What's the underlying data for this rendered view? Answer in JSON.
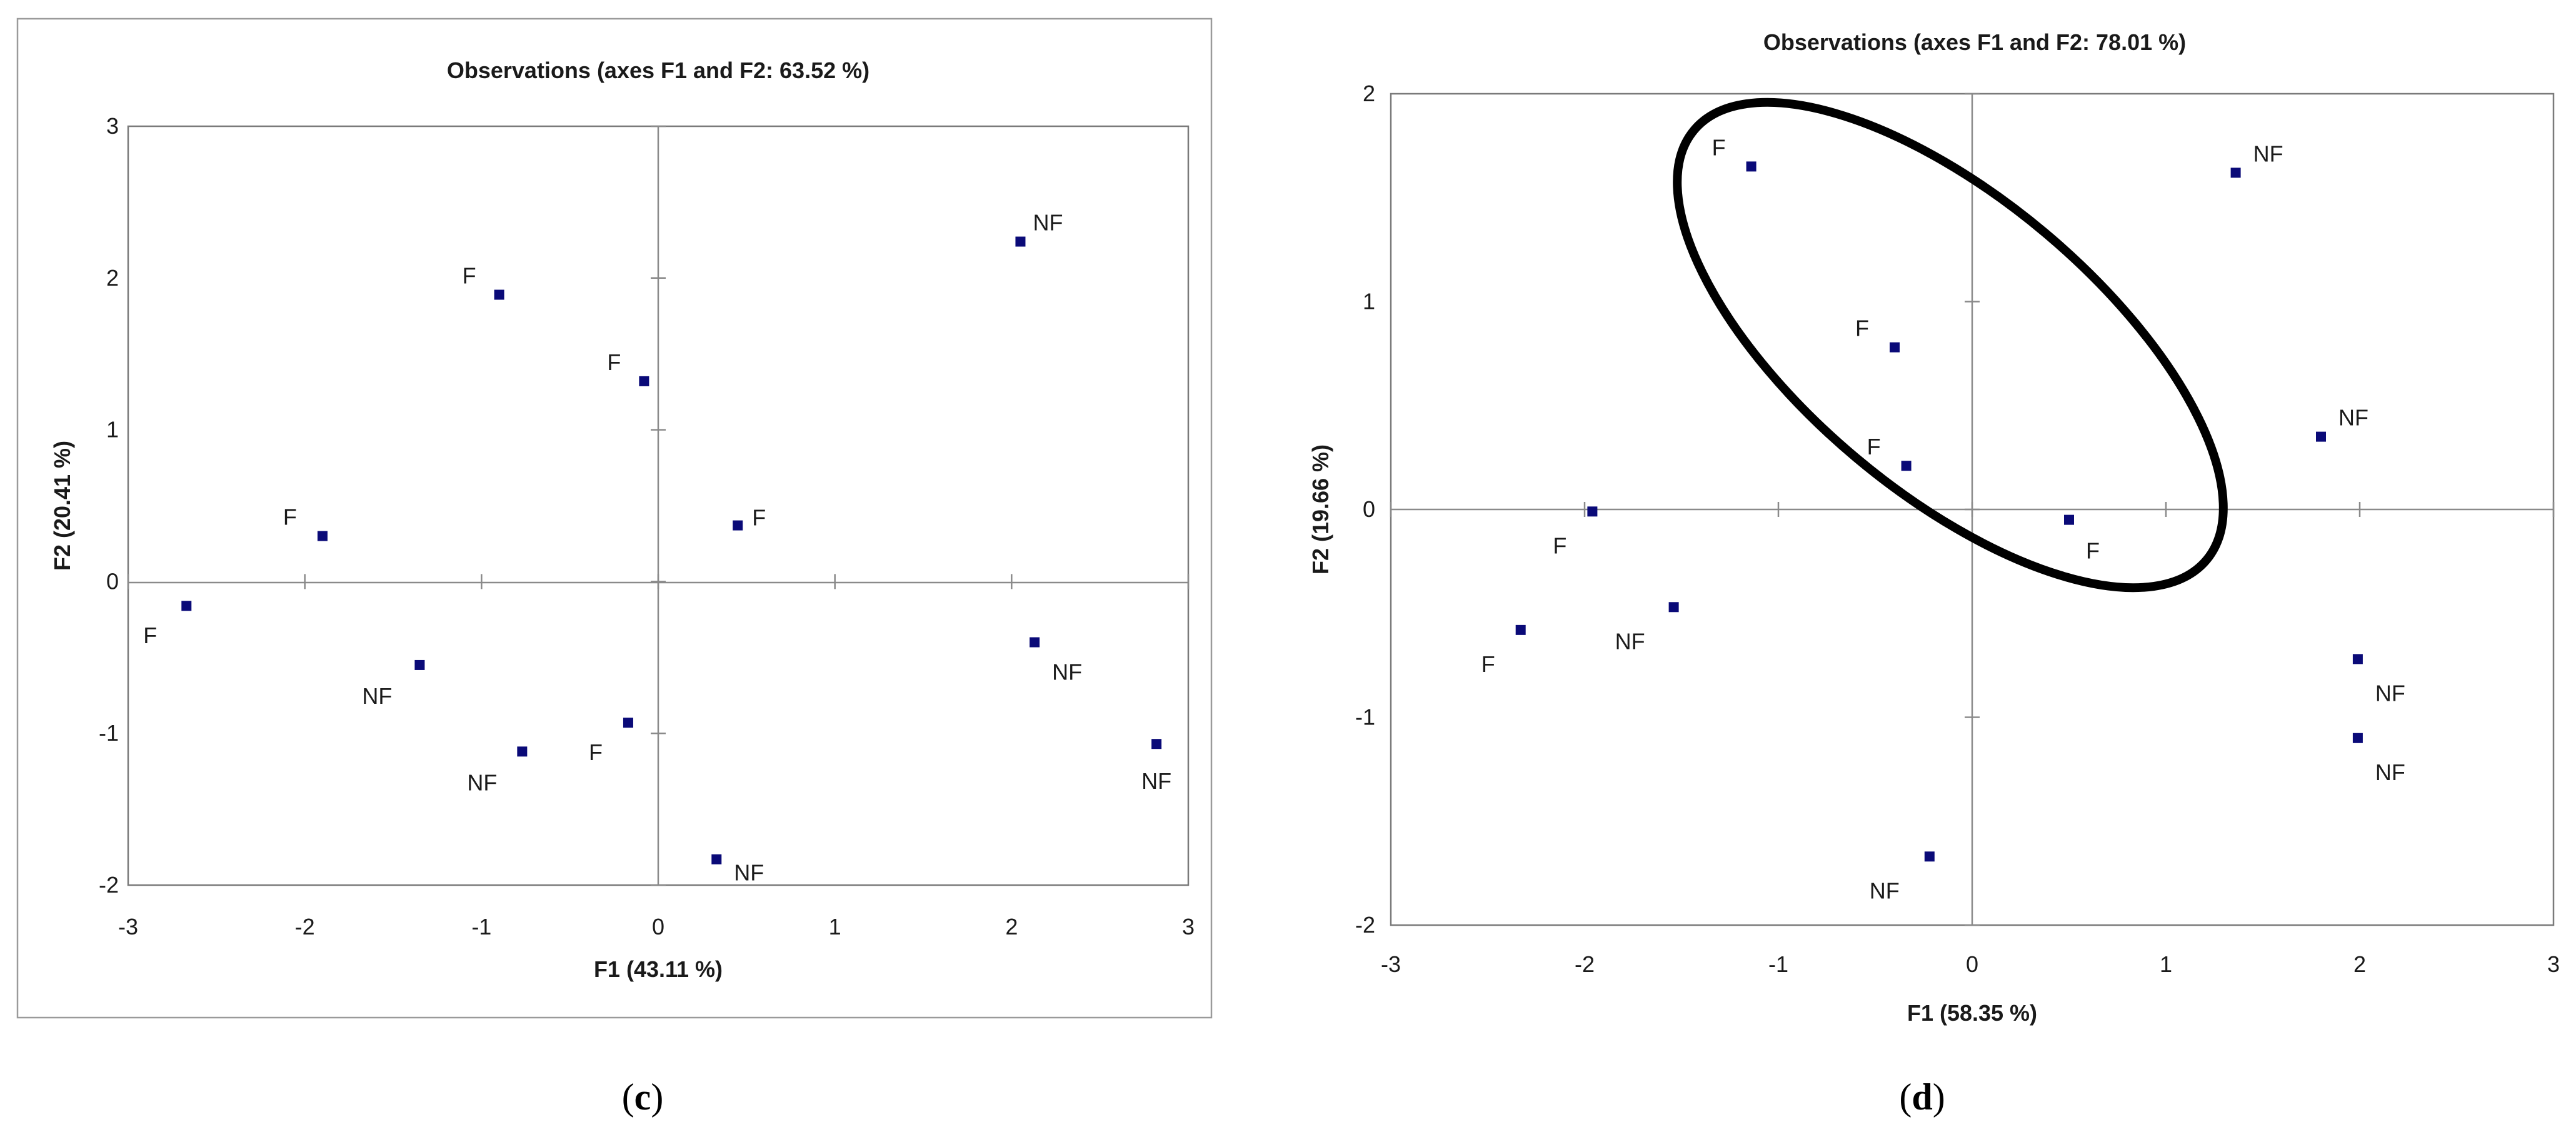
{
  "chart_data": [
    {
      "type": "scatter",
      "panel": "c",
      "title": "Observations (axes F1 and F2: 63.52 %)",
      "xlabel": "F1 (43.11 %)",
      "ylabel": "F2 (20.41 %)",
      "xlim": [
        -3,
        3
      ],
      "ylim": [
        -2,
        3
      ],
      "xticks": [
        "-3",
        "-2",
        "-1",
        "0",
        "1",
        "2",
        "3"
      ],
      "yticks": [
        "-2",
        "-1",
        "0",
        "1",
        "2",
        "3"
      ],
      "grid": false,
      "points": [
        {
          "x": -0.9,
          "y": 1.89,
          "label": "F"
        },
        {
          "x": -0.08,
          "y": 1.32,
          "label": "F"
        },
        {
          "x": -1.9,
          "y": 0.3,
          "label": "F"
        },
        {
          "x": -2.67,
          "y": -0.16,
          "label": "F"
        },
        {
          "x": 0.45,
          "y": 0.37,
          "label": "F"
        },
        {
          "x": -0.17,
          "y": -0.93,
          "label": "F"
        },
        {
          "x": 2.05,
          "y": 2.24,
          "label": "NF"
        },
        {
          "x": -1.35,
          "y": -0.55,
          "label": "NF"
        },
        {
          "x": -0.77,
          "y": -1.12,
          "label": "NF"
        },
        {
          "x": 0.33,
          "y": -1.83,
          "label": "NF"
        },
        {
          "x": 2.13,
          "y": -0.4,
          "label": "NF"
        },
        {
          "x": 2.82,
          "y": -1.07,
          "label": "NF"
        }
      ]
    },
    {
      "type": "scatter",
      "panel": "d",
      "title": "Observations (axes F1 and F2: 78.01 %)",
      "xlabel": "F1 (58.35 %)",
      "ylabel": "F2 (19.66 %)",
      "xlim": [
        -3,
        3
      ],
      "ylim": [
        -2,
        2
      ],
      "xticks": [
        "-3",
        "-2",
        "-1",
        "0",
        "1",
        "2",
        "3"
      ],
      "yticks": [
        "-2",
        "-1",
        "0",
        "1",
        "2"
      ],
      "grid": false,
      "points": [
        {
          "x": -1.14,
          "y": 1.65,
          "label": "F"
        },
        {
          "x": -0.4,
          "y": 0.78,
          "label": "F"
        },
        {
          "x": -0.34,
          "y": 0.21,
          "label": "F"
        },
        {
          "x": -1.96,
          "y": -0.01,
          "label": "F"
        },
        {
          "x": 0.5,
          "y": -0.05,
          "label": "F"
        },
        {
          "x": -2.33,
          "y": -0.58,
          "label": "F"
        },
        {
          "x": 1.36,
          "y": 1.62,
          "label": "NF"
        },
        {
          "x": 1.8,
          "y": 0.35,
          "label": "NF"
        },
        {
          "x": -1.54,
          "y": -0.47,
          "label": "NF"
        },
        {
          "x": 1.99,
          "y": -0.72,
          "label": "NF"
        },
        {
          "x": 1.99,
          "y": -1.1,
          "label": "NF"
        },
        {
          "x": -0.22,
          "y": -1.67,
          "label": "NF"
        }
      ]
    }
  ],
  "captions": [
    {
      "open": "(",
      "letter": "c",
      "close": ")"
    },
    {
      "open": "(",
      "letter": "d",
      "close": ")"
    }
  ]
}
